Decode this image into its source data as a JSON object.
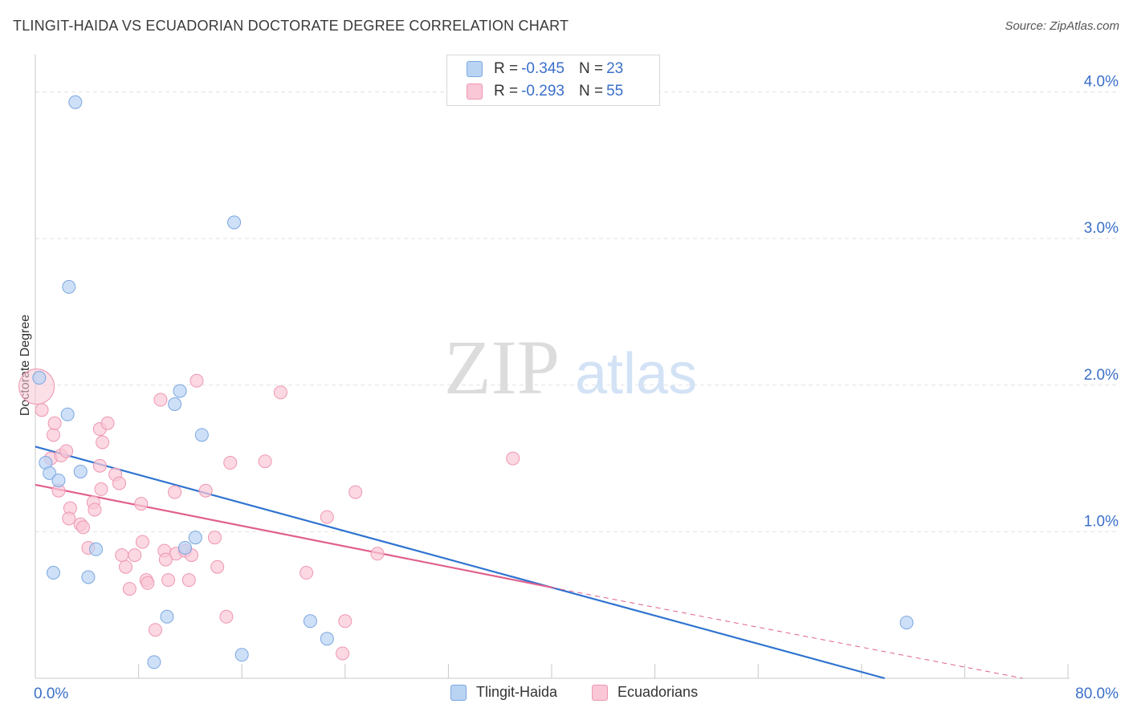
{
  "header": {
    "title": "TLINGIT-HAIDA VS ECUADORIAN DOCTORATE DEGREE CORRELATION CHART",
    "source": "Source: ZipAtlas.com"
  },
  "watermark": {
    "zip": "ZIP",
    "atlas": "atlas"
  },
  "legend": {
    "rows": [
      {
        "r_label": "R = ",
        "r_value": "-0.345",
        "n_label": "N = ",
        "n_value": "23"
      },
      {
        "r_label": "R = ",
        "r_value": "-0.293",
        "n_label": "N = ",
        "n_value": "55"
      }
    ]
  },
  "bottom_legend": {
    "items": [
      {
        "label": "Tlingit-Haida"
      },
      {
        "label": "Ecuadorians"
      }
    ]
  },
  "colors": {
    "blue_fill": "#b9d3f3",
    "blue_stroke": "#7aa7e0",
    "blue_line": "#2f74d0",
    "pink_fill": "#f9c7d6",
    "pink_stroke": "#ee97b2",
    "pink_line": "#e0608c",
    "tick_text": "#3a6fc8",
    "grid": "#e2e2e2"
  },
  "chart_data": {
    "type": "scatter",
    "title": "TLINGIT-HAIDA VS ECUADORIAN DOCTORATE DEGREE CORRELATION CHART",
    "xlabel": "",
    "ylabel": "Doctorate Degree",
    "xlim": [
      0,
      80
    ],
    "ylim": [
      0,
      4.2
    ],
    "x_tick_labels": [
      {
        "value": 0,
        "label": "0.0%"
      },
      {
        "value": 80,
        "label": "80.0%"
      }
    ],
    "y_tick_labels": [
      {
        "value": 1,
        "label": "1.0%"
      },
      {
        "value": 2,
        "label": "2.0%"
      },
      {
        "value": 3,
        "label": "3.0%"
      },
      {
        "value": 4,
        "label": "4.0%"
      }
    ],
    "x_minor_ticks": [
      8,
      16,
      24,
      32,
      40,
      48,
      56,
      64,
      72,
      80
    ],
    "series": [
      {
        "name": "Tlingit-Haida",
        "color": "blue",
        "points": [
          {
            "x": 3.1,
            "y": 3.93
          },
          {
            "x": 15.4,
            "y": 3.11
          },
          {
            "x": 2.6,
            "y": 2.67
          },
          {
            "x": 0.3,
            "y": 2.05
          },
          {
            "x": 11.2,
            "y": 1.96
          },
          {
            "x": 10.8,
            "y": 1.87
          },
          {
            "x": 2.5,
            "y": 1.8
          },
          {
            "x": 12.9,
            "y": 1.66
          },
          {
            "x": 0.8,
            "y": 1.47
          },
          {
            "x": 1.1,
            "y": 1.4
          },
          {
            "x": 3.5,
            "y": 1.41
          },
          {
            "x": 1.8,
            "y": 1.35
          },
          {
            "x": 12.4,
            "y": 0.96
          },
          {
            "x": 11.6,
            "y": 0.89
          },
          {
            "x": 4.7,
            "y": 0.88
          },
          {
            "x": 1.4,
            "y": 0.72
          },
          {
            "x": 4.1,
            "y": 0.69
          },
          {
            "x": 10.2,
            "y": 0.42
          },
          {
            "x": 21.3,
            "y": 0.39
          },
          {
            "x": 67.5,
            "y": 0.38
          },
          {
            "x": 22.6,
            "y": 0.27
          },
          {
            "x": 16.0,
            "y": 0.16
          },
          {
            "x": 9.2,
            "y": 0.11
          }
        ],
        "trend": {
          "x1": 0,
          "y1": 1.58,
          "x2": 65.8,
          "y2": 0.0,
          "style": "solid"
        }
      },
      {
        "name": "Ecuadorians",
        "color": "pink",
        "points": [
          {
            "x": 0.1,
            "y": 1.99,
            "size": "large"
          },
          {
            "x": 0.5,
            "y": 1.83
          },
          {
            "x": 1.4,
            "y": 1.66
          },
          {
            "x": 1.5,
            "y": 1.74
          },
          {
            "x": 5.0,
            "y": 1.7
          },
          {
            "x": 5.6,
            "y": 1.74
          },
          {
            "x": 5.2,
            "y": 1.61
          },
          {
            "x": 1.2,
            "y": 1.5
          },
          {
            "x": 2.0,
            "y": 1.52
          },
          {
            "x": 2.4,
            "y": 1.55
          },
          {
            "x": 5.0,
            "y": 1.45
          },
          {
            "x": 6.2,
            "y": 1.39
          },
          {
            "x": 6.5,
            "y": 1.33
          },
          {
            "x": 1.8,
            "y": 1.28
          },
          {
            "x": 5.1,
            "y": 1.29
          },
          {
            "x": 4.5,
            "y": 1.2
          },
          {
            "x": 8.2,
            "y": 1.19
          },
          {
            "x": 2.7,
            "y": 1.16
          },
          {
            "x": 4.6,
            "y": 1.15
          },
          {
            "x": 2.6,
            "y": 1.09
          },
          {
            "x": 3.5,
            "y": 1.05
          },
          {
            "x": 3.7,
            "y": 1.03
          },
          {
            "x": 9.7,
            "y": 1.9
          },
          {
            "x": 12.5,
            "y": 2.03
          },
          {
            "x": 19.0,
            "y": 1.95
          },
          {
            "x": 17.8,
            "y": 1.48
          },
          {
            "x": 15.1,
            "y": 1.47
          },
          {
            "x": 37.0,
            "y": 1.5
          },
          {
            "x": 13.2,
            "y": 1.28
          },
          {
            "x": 10.8,
            "y": 1.27
          },
          {
            "x": 24.8,
            "y": 1.27
          },
          {
            "x": 22.6,
            "y": 1.1
          },
          {
            "x": 8.3,
            "y": 0.93
          },
          {
            "x": 13.9,
            "y": 0.96
          },
          {
            "x": 4.1,
            "y": 0.89
          },
          {
            "x": 10.0,
            "y": 0.87
          },
          {
            "x": 6.7,
            "y": 0.84
          },
          {
            "x": 7.7,
            "y": 0.84
          },
          {
            "x": 10.9,
            "y": 0.85
          },
          {
            "x": 11.6,
            "y": 0.87
          },
          {
            "x": 12.1,
            "y": 0.84
          },
          {
            "x": 10.1,
            "y": 0.81
          },
          {
            "x": 26.5,
            "y": 0.85
          },
          {
            "x": 7.0,
            "y": 0.76
          },
          {
            "x": 14.1,
            "y": 0.76
          },
          {
            "x": 21.0,
            "y": 0.72
          },
          {
            "x": 8.6,
            "y": 0.67
          },
          {
            "x": 8.7,
            "y": 0.65
          },
          {
            "x": 10.3,
            "y": 0.67
          },
          {
            "x": 11.9,
            "y": 0.67
          },
          {
            "x": 7.3,
            "y": 0.61
          },
          {
            "x": 14.8,
            "y": 0.42
          },
          {
            "x": 24.0,
            "y": 0.39
          },
          {
            "x": 9.3,
            "y": 0.33
          },
          {
            "x": 23.8,
            "y": 0.17
          }
        ],
        "trend": {
          "x1": 0,
          "y1": 1.32,
          "x2": 40.0,
          "y2": 0.62,
          "style": "solid",
          "extension": {
            "x2": 76.5,
            "y2": 0.0,
            "style": "dashed"
          }
        }
      }
    ]
  }
}
